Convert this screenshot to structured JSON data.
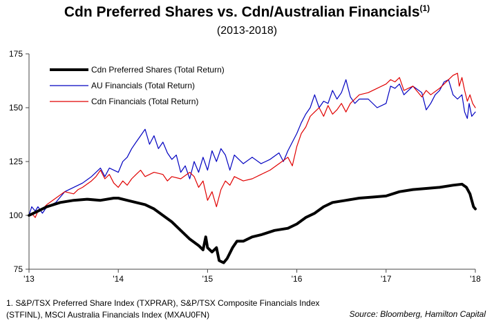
{
  "title": "Cdn Preferred Shares vs. Cdn/Australian Financials",
  "title_superscript": "(1)",
  "subtitle": "(2013-2018)",
  "footnote": "1. S&P/TSX Preferred Share Index (TXPRAR), S&P/TSX Composite Financials Index (STFINL), MSCI Australia Financials Index (MXAU0FN)",
  "source": "Source: Bloomberg, Hamilton Capital",
  "chart_data": {
    "type": "line",
    "x_tick_labels": [
      "'13",
      "'14",
      "'15",
      "'16",
      "'17",
      "'18"
    ],
    "x_ticks": [
      2013,
      2014,
      2015,
      2016,
      2017,
      2018
    ],
    "xlim": [
      2013,
      2018
    ],
    "ylim": [
      75,
      175
    ],
    "y_ticks": [
      75,
      100,
      125,
      150,
      175
    ],
    "grid": false,
    "legend_position": "top-left",
    "series": [
      {
        "name": "Cdn Preferred Shares (Total Return)",
        "color": "#000000",
        "width": 4,
        "points": [
          [
            2013.0,
            100
          ],
          [
            2013.1,
            102
          ],
          [
            2013.2,
            104
          ],
          [
            2013.35,
            106
          ],
          [
            2013.5,
            107
          ],
          [
            2013.65,
            107.5
          ],
          [
            2013.8,
            107
          ],
          [
            2013.95,
            108
          ],
          [
            2014.0,
            108
          ],
          [
            2014.1,
            107
          ],
          [
            2014.2,
            106
          ],
          [
            2014.3,
            105
          ],
          [
            2014.4,
            103
          ],
          [
            2014.5,
            100
          ],
          [
            2014.6,
            97
          ],
          [
            2014.7,
            93
          ],
          [
            2014.8,
            89
          ],
          [
            2014.9,
            86
          ],
          [
            2014.95,
            84
          ],
          [
            2014.98,
            90
          ],
          [
            2015.0,
            85
          ],
          [
            2015.05,
            83
          ],
          [
            2015.1,
            85
          ],
          [
            2015.13,
            79
          ],
          [
            2015.18,
            78
          ],
          [
            2015.22,
            80
          ],
          [
            2015.28,
            85
          ],
          [
            2015.33,
            88
          ],
          [
            2015.4,
            88
          ],
          [
            2015.5,
            90
          ],
          [
            2015.6,
            91
          ],
          [
            2015.75,
            93
          ],
          [
            2015.9,
            94
          ],
          [
            2016.0,
            96
          ],
          [
            2016.1,
            99
          ],
          [
            2016.2,
            101
          ],
          [
            2016.3,
            104
          ],
          [
            2016.4,
            106
          ],
          [
            2016.55,
            107
          ],
          [
            2016.7,
            108
          ],
          [
            2016.85,
            108.5
          ],
          [
            2017.0,
            109
          ],
          [
            2017.15,
            111
          ],
          [
            2017.3,
            112
          ],
          [
            2017.45,
            112.5
          ],
          [
            2017.6,
            113
          ],
          [
            2017.75,
            114
          ],
          [
            2017.85,
            114.5
          ],
          [
            2017.9,
            113
          ],
          [
            2017.94,
            110
          ],
          [
            2017.96,
            107
          ],
          [
            2017.98,
            104
          ],
          [
            2018.0,
            103
          ]
        ]
      },
      {
        "name": "AU Financials (Total Return)",
        "color": "#0000c0",
        "width": 1.2,
        "points": [
          [
            2013.0,
            100
          ],
          [
            2013.03,
            104
          ],
          [
            2013.07,
            102
          ],
          [
            2013.1,
            104
          ],
          [
            2013.15,
            101
          ],
          [
            2013.2,
            104
          ],
          [
            2013.3,
            106
          ],
          [
            2013.4,
            111
          ],
          [
            2013.5,
            113
          ],
          [
            2013.6,
            115
          ],
          [
            2013.7,
            118
          ],
          [
            2013.8,
            122
          ],
          [
            2013.85,
            118
          ],
          [
            2013.9,
            122
          ],
          [
            2014.0,
            120
          ],
          [
            2014.05,
            125
          ],
          [
            2014.1,
            127
          ],
          [
            2014.15,
            131
          ],
          [
            2014.2,
            134
          ],
          [
            2014.25,
            137
          ],
          [
            2014.3,
            140
          ],
          [
            2014.35,
            133
          ],
          [
            2014.4,
            137
          ],
          [
            2014.45,
            131
          ],
          [
            2014.5,
            134
          ],
          [
            2014.55,
            129
          ],
          [
            2014.6,
            126
          ],
          [
            2014.65,
            128
          ],
          [
            2014.7,
            120
          ],
          [
            2014.75,
            123
          ],
          [
            2014.8,
            117
          ],
          [
            2014.85,
            125
          ],
          [
            2014.9,
            120
          ],
          [
            2014.95,
            127
          ],
          [
            2015.0,
            121
          ],
          [
            2015.05,
            130
          ],
          [
            2015.1,
            125
          ],
          [
            2015.15,
            131
          ],
          [
            2015.2,
            128
          ],
          [
            2015.25,
            121
          ],
          [
            2015.3,
            128
          ],
          [
            2015.4,
            124
          ],
          [
            2015.5,
            127
          ],
          [
            2015.6,
            124
          ],
          [
            2015.7,
            126
          ],
          [
            2015.8,
            129
          ],
          [
            2015.85,
            125
          ],
          [
            2015.9,
            130
          ],
          [
            2016.0,
            138
          ],
          [
            2016.05,
            143
          ],
          [
            2016.1,
            147
          ],
          [
            2016.15,
            150
          ],
          [
            2016.2,
            156
          ],
          [
            2016.25,
            150
          ],
          [
            2016.3,
            153
          ],
          [
            2016.35,
            152
          ],
          [
            2016.4,
            158
          ],
          [
            2016.45,
            154
          ],
          [
            2016.5,
            157
          ],
          [
            2016.55,
            163
          ],
          [
            2016.6,
            155
          ],
          [
            2016.65,
            152
          ],
          [
            2016.7,
            154
          ],
          [
            2016.8,
            154
          ],
          [
            2016.9,
            150
          ],
          [
            2017.0,
            152
          ],
          [
            2017.05,
            160
          ],
          [
            2017.1,
            159
          ],
          [
            2017.15,
            161
          ],
          [
            2017.2,
            156
          ],
          [
            2017.3,
            160
          ],
          [
            2017.4,
            157
          ],
          [
            2017.45,
            149
          ],
          [
            2017.5,
            152
          ],
          [
            2017.55,
            156
          ],
          [
            2017.6,
            158
          ],
          [
            2017.65,
            162
          ],
          [
            2017.7,
            163
          ],
          [
            2017.75,
            156
          ],
          [
            2017.8,
            154
          ],
          [
            2017.85,
            156
          ],
          [
            2017.88,
            148
          ],
          [
            2017.91,
            145
          ],
          [
            2017.93,
            152
          ],
          [
            2017.96,
            146
          ],
          [
            2018.0,
            148
          ]
        ]
      },
      {
        "name": "Cdn Financials (Total Return)",
        "color": "#e00000",
        "width": 1.2,
        "points": [
          [
            2013.0,
            100
          ],
          [
            2013.03,
            101
          ],
          [
            2013.07,
            99
          ],
          [
            2013.1,
            102
          ],
          [
            2013.15,
            103
          ],
          [
            2013.2,
            105
          ],
          [
            2013.3,
            108
          ],
          [
            2013.4,
            111
          ],
          [
            2013.5,
            110
          ],
          [
            2013.55,
            112
          ],
          [
            2013.6,
            113
          ],
          [
            2013.7,
            116
          ],
          [
            2013.75,
            118
          ],
          [
            2013.8,
            121
          ],
          [
            2013.85,
            117
          ],
          [
            2013.9,
            119
          ],
          [
            2013.95,
            115
          ],
          [
            2014.0,
            113
          ],
          [
            2014.05,
            116
          ],
          [
            2014.1,
            114
          ],
          [
            2014.15,
            117
          ],
          [
            2014.2,
            119
          ],
          [
            2014.25,
            121
          ],
          [
            2014.3,
            118
          ],
          [
            2014.4,
            120
          ],
          [
            2014.5,
            119
          ],
          [
            2014.55,
            116
          ],
          [
            2014.6,
            118
          ],
          [
            2014.7,
            117
          ],
          [
            2014.8,
            120
          ],
          [
            2014.85,
            118
          ],
          [
            2014.9,
            113
          ],
          [
            2014.95,
            116
          ],
          [
            2015.0,
            107
          ],
          [
            2015.05,
            111
          ],
          [
            2015.1,
            104
          ],
          [
            2015.15,
            112
          ],
          [
            2015.2,
            116
          ],
          [
            2015.25,
            114
          ],
          [
            2015.3,
            118
          ],
          [
            2015.4,
            116
          ],
          [
            2015.5,
            117
          ],
          [
            2015.6,
            119
          ],
          [
            2015.7,
            121
          ],
          [
            2015.8,
            124
          ],
          [
            2015.9,
            127
          ],
          [
            2015.95,
            123
          ],
          [
            2016.0,
            132
          ],
          [
            2016.05,
            138
          ],
          [
            2016.1,
            141
          ],
          [
            2016.15,
            146
          ],
          [
            2016.2,
            148
          ],
          [
            2016.25,
            150
          ],
          [
            2016.3,
            146
          ],
          [
            2016.35,
            151
          ],
          [
            2016.4,
            147
          ],
          [
            2016.45,
            149
          ],
          [
            2016.5,
            152
          ],
          [
            2016.55,
            148
          ],
          [
            2016.6,
            152
          ],
          [
            2016.7,
            156
          ],
          [
            2016.8,
            157
          ],
          [
            2016.9,
            159
          ],
          [
            2017.0,
            161
          ],
          [
            2017.05,
            163
          ],
          [
            2017.1,
            162
          ],
          [
            2017.15,
            164
          ],
          [
            2017.2,
            158
          ],
          [
            2017.3,
            160
          ],
          [
            2017.4,
            155
          ],
          [
            2017.45,
            158
          ],
          [
            2017.5,
            156
          ],
          [
            2017.6,
            159
          ],
          [
            2017.7,
            163
          ],
          [
            2017.75,
            165
          ],
          [
            2017.8,
            166
          ],
          [
            2017.82,
            160
          ],
          [
            2017.85,
            164
          ],
          [
            2017.88,
            158
          ],
          [
            2017.91,
            153
          ],
          [
            2017.94,
            156
          ],
          [
            2017.97,
            152
          ],
          [
            2018.0,
            150
          ]
        ]
      }
    ]
  }
}
